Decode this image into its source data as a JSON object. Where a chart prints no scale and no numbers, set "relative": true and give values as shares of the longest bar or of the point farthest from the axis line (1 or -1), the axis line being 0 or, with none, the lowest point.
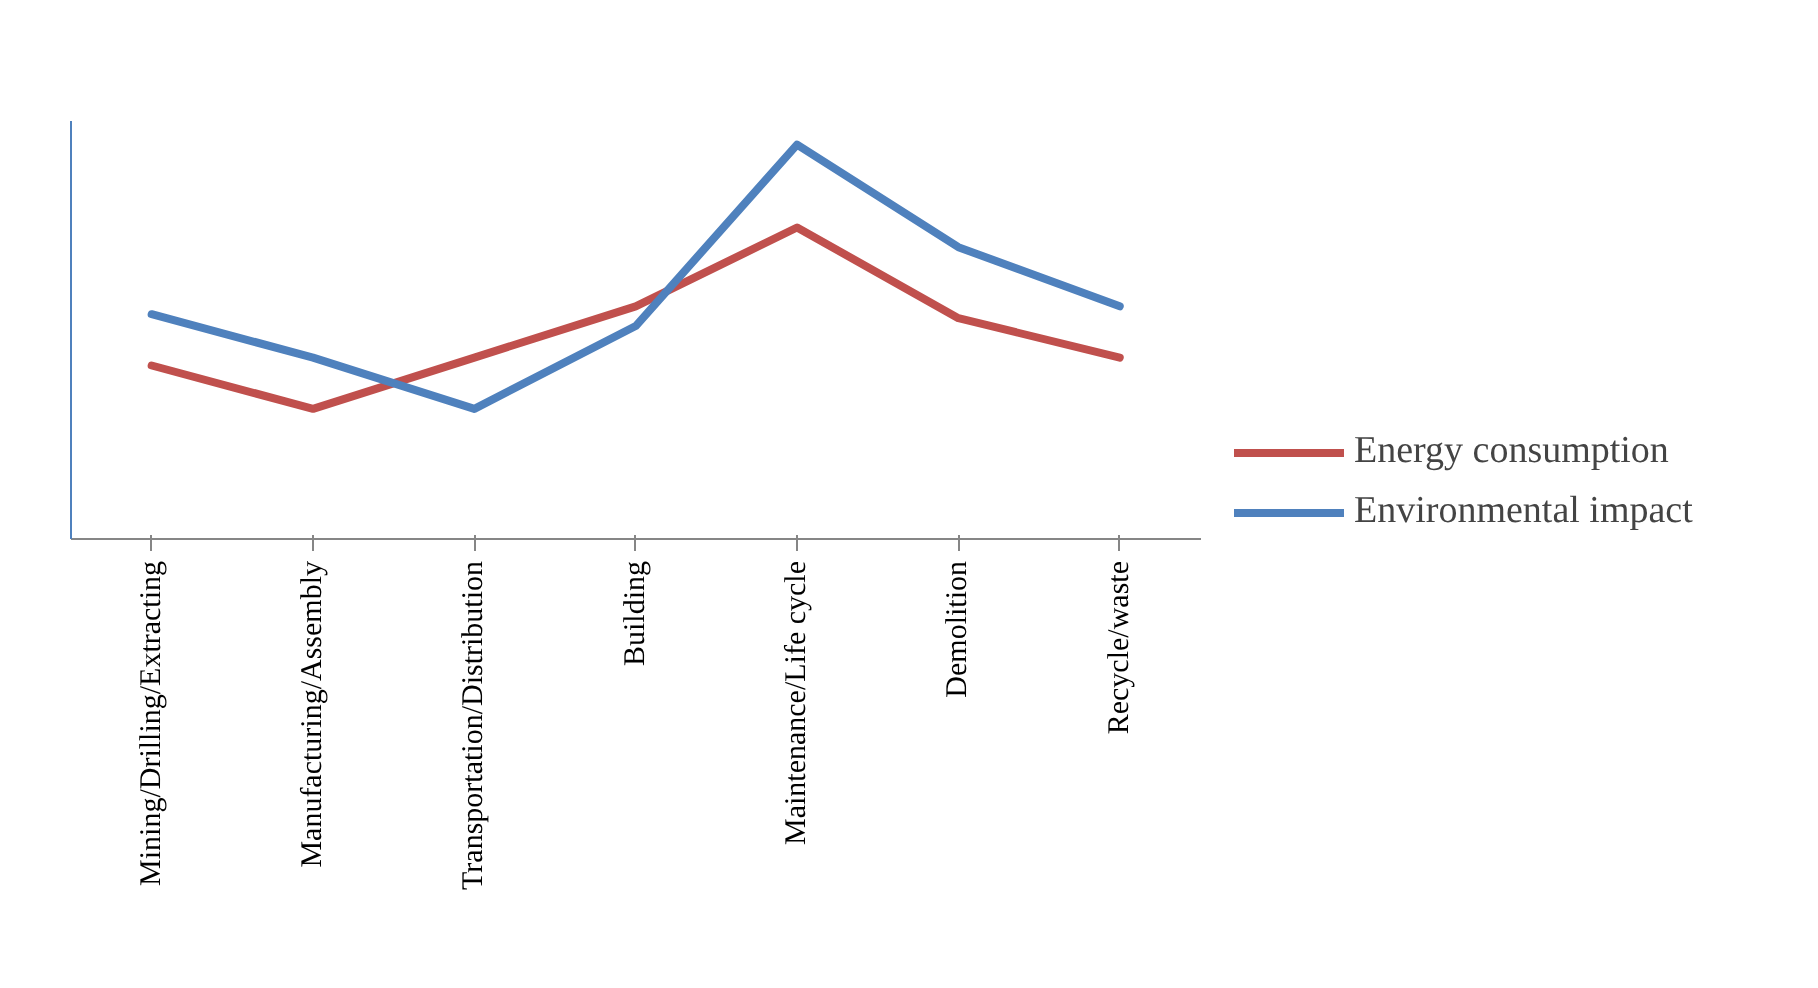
{
  "chart_data": {
    "type": "line",
    "relative": true,
    "categories": [
      "Mining/Drilling/Extracting",
      "Manufacturing/Assembly",
      "Transportation/Distribution",
      "Building",
      "Maintenance/Life cycle",
      "Demolition",
      "Recycle/waste"
    ],
    "series": [
      {
        "name": "Energy consumption",
        "color": "#c0504d",
        "values": [
          0.44,
          0.33,
          0.46,
          0.59,
          0.79,
          0.56,
          0.46
        ]
      },
      {
        "name": "Environmental impact",
        "color": "#4f81bd",
        "values": [
          0.57,
          0.46,
          0.33,
          0.54,
          1.0,
          0.74,
          0.59
        ]
      }
    ],
    "legend": "right",
    "grid": false,
    "marker": "none",
    "line_style": "solid"
  }
}
